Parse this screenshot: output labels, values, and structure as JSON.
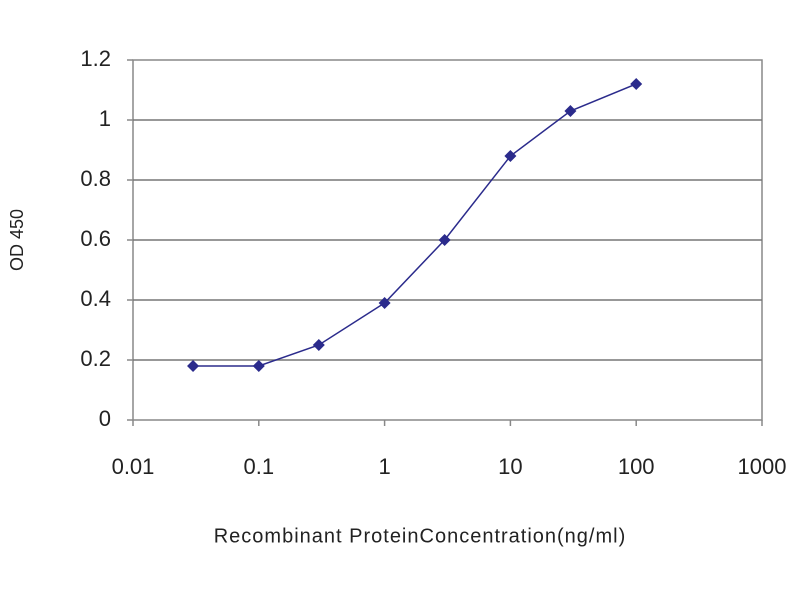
{
  "chart_data": {
    "type": "line",
    "x_label": "Recombinant ProteinConcentration(ng/ml)",
    "y_label": "OD 450",
    "x": [
      0.03,
      0.1,
      0.3,
      1,
      3,
      10,
      30,
      100
    ],
    "series": [
      {
        "color": "#2b2b8c",
        "values": [
          0.18,
          0.18,
          0.25,
          0.39,
          0.6,
          0.88,
          1.03,
          1.12
        ]
      }
    ],
    "xscale": "log",
    "xlim": [
      0.01,
      1000
    ],
    "xticks": [
      0.01,
      0.1,
      1,
      10,
      100,
      1000
    ],
    "ylim": [
      0,
      1.2
    ],
    "yticks": [
      0,
      0.2,
      0.4,
      0.6,
      0.8,
      1,
      1.2
    ],
    "grid": true
  }
}
